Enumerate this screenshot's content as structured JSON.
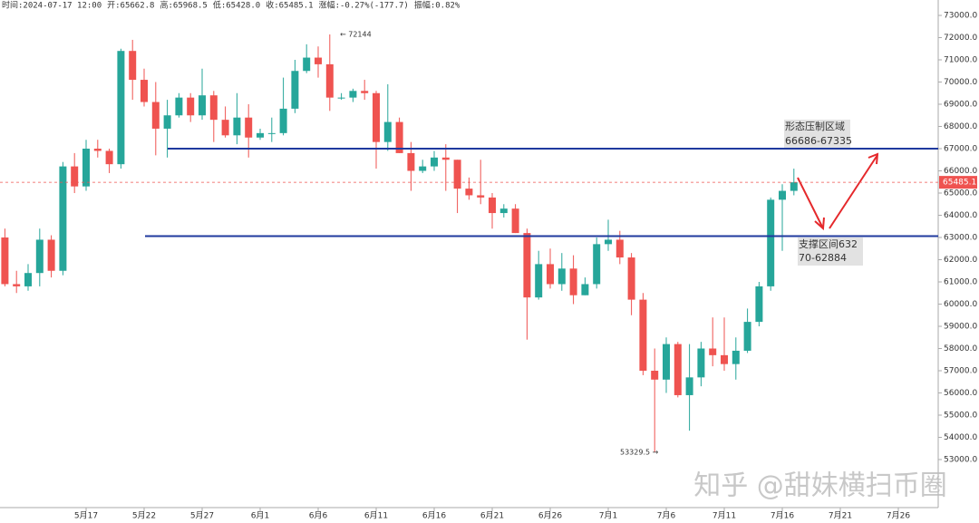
{
  "header": {
    "items": [
      "时间:2024-07-17 12:00",
      "开:65662.8",
      "高:65968.5",
      "低:65428.0",
      "收:65485.1",
      "涨幅:-0.27%(-177.7)",
      "振幅:0.82%"
    ]
  },
  "chart_data": {
    "type": "candlestick",
    "up_color": "#26a69a",
    "down_color": "#ef5350",
    "categories": [
      null,
      null,
      null,
      null,
      null,
      null,
      null,
      "5月17",
      null,
      null,
      null,
      null,
      "5月22",
      null,
      null,
      null,
      null,
      "5月27",
      null,
      null,
      null,
      null,
      "6月1",
      null,
      null,
      null,
      null,
      "6月6",
      null,
      null,
      null,
      null,
      "6月11",
      null,
      null,
      null,
      null,
      "6月16",
      null,
      null,
      null,
      null,
      "6月21",
      null,
      null,
      null,
      null,
      "6月26",
      null,
      null,
      null,
      null,
      "7月1",
      null,
      null,
      null,
      null,
      "7月6",
      null,
      null,
      null,
      null,
      "7月11",
      null,
      null,
      null,
      null,
      "7月16",
      null,
      null,
      null,
      null,
      "7月21",
      null,
      null,
      null,
      null,
      "7月26",
      null,
      null
    ],
    "open": [
      63000,
      60900,
      60800,
      61400,
      62900,
      61500,
      66200,
      65300,
      67000,
      66900,
      66300,
      71400,
      70100,
      69100,
      67900,
      68500,
      69300,
      68500,
      69400,
      68300,
      67600,
      68400,
      67500,
      67700,
      67700,
      68800,
      70500,
      71100,
      70800,
      69300,
      69300,
      69600,
      69500,
      67300,
      68200,
      66800,
      66000,
      66200,
      66600,
      66500,
      65200,
      64900,
      64800,
      64100,
      64300,
      63200,
      60300,
      61800,
      60900,
      61600,
      60400,
      60900,
      62700,
      62900,
      62100,
      60200,
      57000,
      56600,
      58200,
      55900,
      56700,
      58000,
      57700,
      57300,
      57900,
      59200,
      60800,
      64700,
      65100,
      null,
      null,
      null,
      null,
      null,
      null,
      null,
      null,
      null,
      null,
      null
    ],
    "high": [
      63400,
      61500,
      61800,
      63400,
      63100,
      66400,
      66800,
      67400,
      67400,
      67000,
      71500,
      71900,
      70600,
      70000,
      69200,
      69500,
      69500,
      70600,
      69600,
      68900,
      69500,
      69000,
      67900,
      68400,
      70200,
      71000,
      71700,
      71600,
      72144,
      69500,
      69700,
      70100,
      69600,
      69900,
      68400,
      67300,
      66500,
      66900,
      67200,
      66500,
      65700,
      66500,
      65000,
      64500,
      64500,
      63400,
      62400,
      62500,
      62300,
      62200,
      61200,
      63000,
      63800,
      63300,
      62300,
      60500,
      58000,
      58500,
      58300,
      58200,
      58300,
      59400,
      59400,
      58500,
      59800,
      61000,
      64800,
      65400,
      66100,
      null,
      null,
      null,
      null,
      null,
      null,
      null,
      null,
      null,
      null,
      null
    ],
    "low": [
      60800,
      60500,
      60600,
      60800,
      61200,
      61300,
      65000,
      65100,
      66600,
      65900,
      66100,
      69200,
      68900,
      66700,
      66600,
      68400,
      68200,
      68300,
      67300,
      67500,
      67200,
      66600,
      67400,
      67300,
      67600,
      68600,
      70400,
      70200,
      68700,
      69200,
      69100,
      69200,
      66100,
      66900,
      66800,
      65100,
      65900,
      66000,
      65100,
      64100,
      64700,
      64500,
      63400,
      63900,
      63200,
      58400,
      60200,
      60700,
      60600,
      60000,
      60400,
      60700,
      62400,
      61800,
      59500,
      56800,
      53329.5,
      56000,
      55800,
      54300,
      56300,
      57200,
      57000,
      56600,
      57800,
      59000,
      60600,
      62400,
      64900,
      null,
      null,
      null,
      null,
      null,
      null,
      null,
      null,
      null,
      null,
      null
    ],
    "close": [
      60900,
      60800,
      61400,
      62900,
      61500,
      66200,
      65300,
      67000,
      66900,
      66300,
      71400,
      70100,
      69100,
      67900,
      68500,
      69300,
      68500,
      69400,
      68300,
      67600,
      68400,
      67500,
      67700,
      67700,
      68800,
      70500,
      71100,
      70800,
      69300,
      69300,
      69600,
      69500,
      67300,
      68200,
      66800,
      66000,
      66200,
      66600,
      66500,
      65200,
      64900,
      64800,
      64100,
      64300,
      63200,
      60300,
      61800,
      60900,
      61600,
      60400,
      60900,
      62700,
      62900,
      62100,
      60200,
      57000,
      56600,
      58200,
      55900,
      56700,
      58000,
      57700,
      57300,
      57900,
      59200,
      60800,
      64700,
      65100,
      65485.1,
      null,
      null,
      null,
      null,
      null,
      null,
      null,
      null,
      null,
      null,
      null
    ],
    "ylim": [
      50837,
      73694
    ],
    "yticks": [
      {
        "value": 53000,
        "label": "53000.0"
      },
      {
        "value": 54000,
        "label": "54000.0"
      },
      {
        "value": 55000,
        "label": "55000.0"
      },
      {
        "value": 56000,
        "label": "56000.0"
      },
      {
        "value": 57000,
        "label": "57000.0"
      },
      {
        "value": 58000,
        "label": "58000.0"
      },
      {
        "value": 59000,
        "label": "59000.0"
      },
      {
        "value": 60000,
        "label": "60000.0"
      },
      {
        "value": 61000,
        "label": "61000.0"
      },
      {
        "value": 62000,
        "label": "62000.0"
      },
      {
        "value": 63000,
        "label": "63000.0"
      },
      {
        "value": 64000,
        "label": "64000.0"
      },
      {
        "value": 65000,
        "label": "65000.0"
      },
      {
        "value": 66000,
        "label": "66000.0"
      },
      {
        "value": 67000,
        "label": "67000.0"
      },
      {
        "value": 68000,
        "label": "68000.0"
      },
      {
        "value": 69000,
        "label": "69000.0"
      },
      {
        "value": 70000,
        "label": "70000.0"
      },
      {
        "value": 71000,
        "label": "71000.0"
      },
      {
        "value": 72000,
        "label": "72000.0"
      },
      {
        "value": 73000,
        "label": "73000.0"
      }
    ],
    "last_price": 65485.1,
    "resistance_line": 67000,
    "support_line": 63060,
    "annotations": {
      "resistance_title": "形态压制区域",
      "resistance_range": "66686-67335",
      "support_line1": "支撑区间632",
      "support_line2": "70-62884",
      "max": "← 72144",
      "min": "53329.5 →"
    },
    "watermark": "知乎 @甜妹横扫币圈"
  }
}
